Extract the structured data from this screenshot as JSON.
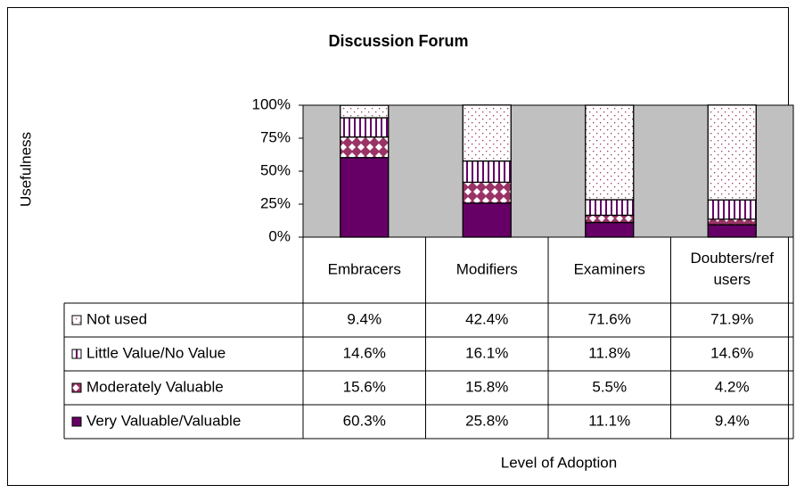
{
  "chart_data": {
    "type": "stacked_bar",
    "title": "Discussion Forum",
    "y_label": "Usefulness",
    "x_label": "Level of Adoption",
    "categories": [
      "Embracers",
      "Modifiers",
      "Examiners",
      "Doubters/ref users"
    ],
    "series": [
      {
        "name": "Very Valuable/Valuable",
        "color": "#660066",
        "pattern": "solid",
        "values": [
          60.3,
          25.8,
          11.1,
          9.4
        ],
        "value_labels": [
          "60.3%",
          "25.8%",
          "11.1%",
          "9.4%"
        ]
      },
      {
        "name": "Moderately Valuable",
        "color": "#993366",
        "pattern": "diamonds",
        "values": [
          15.6,
          15.8,
          5.5,
          4.2
        ],
        "value_labels": [
          "15.6%",
          "15.8%",
          "5.5%",
          "4.2%"
        ]
      },
      {
        "name": "Little Value/No Value",
        "color": "#660066",
        "pattern": "stripes",
        "values": [
          14.6,
          16.1,
          11.8,
          14.6
        ],
        "value_labels": [
          "14.6%",
          "16.1%",
          "11.8%",
          "14.6%"
        ]
      },
      {
        "name": "Not used",
        "color": "#993366",
        "pattern": "dots",
        "values": [
          9.4,
          42.4,
          71.6,
          71.9
        ],
        "value_labels": [
          "9.4%",
          "42.4%",
          "71.6%",
          "71.9%"
        ]
      }
    ],
    "ylim": [
      0,
      100
    ],
    "yticks": [
      {
        "value": 0,
        "label": "0%"
      },
      {
        "value": 25,
        "label": "25%"
      },
      {
        "value": 50,
        "label": "50%"
      },
      {
        "value": 75,
        "label": "75%"
      },
      {
        "value": 100,
        "label": "100%"
      }
    ],
    "plot_background": "#c0c0c0"
  }
}
